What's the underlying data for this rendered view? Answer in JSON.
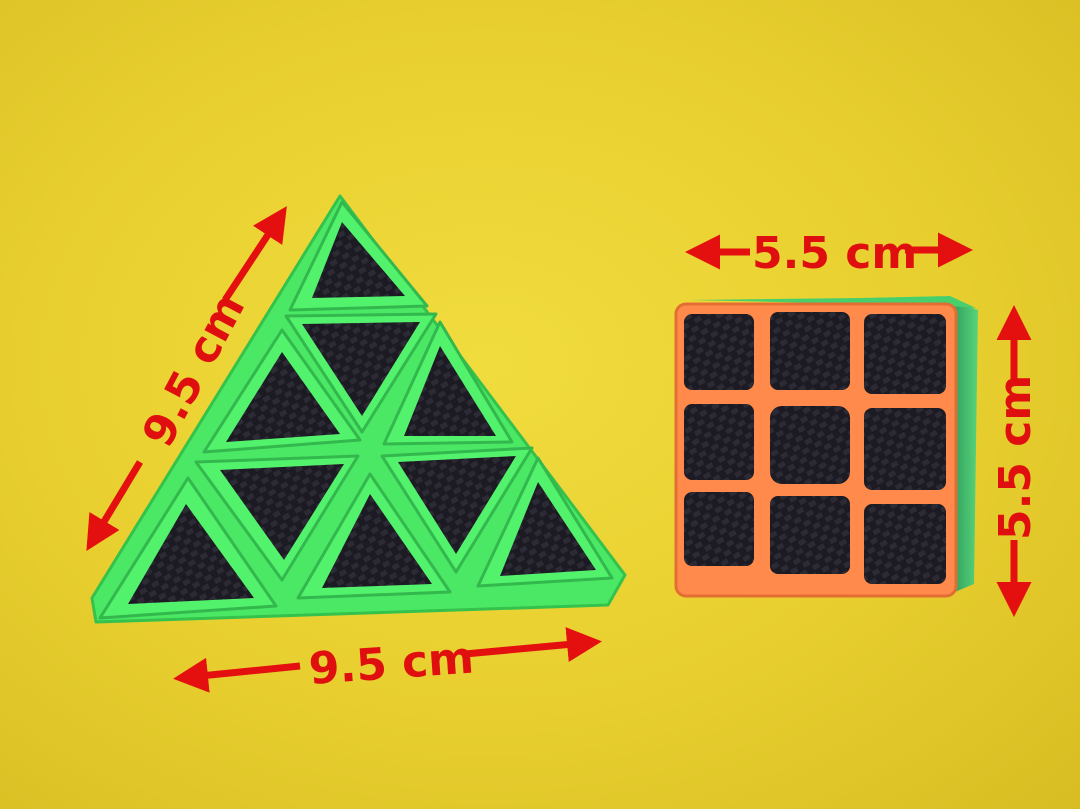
{
  "scene": {
    "background_color": "#e9d232",
    "pyraminx": {
      "frame_color": "#52f26d",
      "sticker_color": "#1c1a22"
    },
    "cube": {
      "frame_color": "#ff8a4c",
      "sticker_color": "#1c1a22"
    },
    "arrow_color": "#e3100f"
  },
  "labels": {
    "pyraminx_side": "9.5 cm",
    "pyraminx_base": "9.5 cm",
    "cube_width": "5.5 cm",
    "cube_height": "5.5 cm"
  }
}
